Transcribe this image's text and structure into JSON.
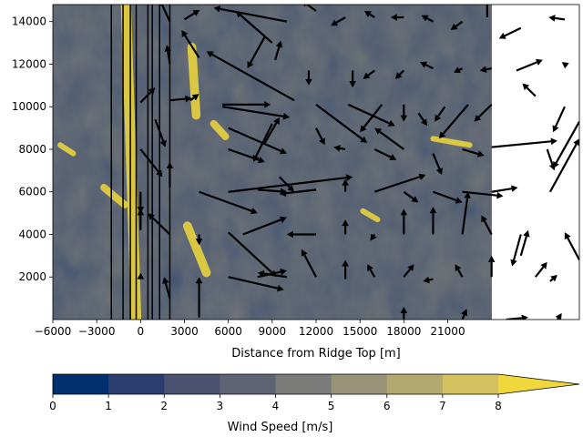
{
  "chart_data": {
    "type": "heatmap",
    "title": "",
    "xlabel": "Distance from Ridge Top [m]",
    "ylabel": "",
    "xlim": [
      -6000,
      30000
    ],
    "ylim": [
      0,
      14800
    ],
    "data_extent_x": [
      -6000,
      24000
    ],
    "x_ticks": [
      -6000,
      -3000,
      0,
      3000,
      6000,
      9000,
      12000,
      15000,
      18000,
      21000
    ],
    "x_tick_labels": [
      "−6000",
      "−3000",
      "0",
      "3000",
      "6000",
      "9000",
      "12000",
      "15000",
      "18000",
      "21000"
    ],
    "y_ticks": [
      2000,
      4000,
      6000,
      8000,
      10000,
      12000,
      14000
    ],
    "y_tick_labels": [
      "2000",
      "4000",
      "6000",
      "8000",
      "10000",
      "12000",
      "14000"
    ],
    "vertical_lines_x": [
      -2000,
      -1200,
      -700,
      -300,
      500,
      800,
      1300,
      2000
    ],
    "colorbar": {
      "label": "Wind Speed [m/s]",
      "levels": [
        0,
        1,
        2,
        3,
        4,
        5,
        6,
        7,
        8,
        9
      ],
      "tick_labels": [
        "0",
        "1",
        "2",
        "3",
        "4",
        "5",
        "6",
        "7",
        "8"
      ],
      "extend": "max",
      "colors": [
        "#00306f",
        "#2b3d6e",
        "#4a5270",
        "#5e6474",
        "#7a7a79",
        "#989279",
        "#b3a870",
        "#d2c15e",
        "#f0d83c",
        "#fde737"
      ],
      "cmap": "cividis"
    },
    "arrow_color": "#000000",
    "vectors": [
      {
        "x": 10000,
        "y": 14000,
        "u": -5000,
        "v": 650
      },
      {
        "x": 2000,
        "y": 14000,
        "u": -700,
        "v": 1050
      },
      {
        "x": 3000,
        "y": 14100,
        "u": 1050,
        "v": 450
      },
      {
        "x": 12000,
        "y": 14500,
        "u": -1000,
        "v": 500
      },
      {
        "x": 14000,
        "y": 14200,
        "u": -1000,
        "v": -400
      },
      {
        "x": 16000,
        "y": 14200,
        "u": -700,
        "v": 300
      },
      {
        "x": 18000,
        "y": 14200,
        "u": -900,
        "v": 0
      },
      {
        "x": 20000,
        "y": 14000,
        "u": -800,
        "v": 300
      },
      {
        "x": 22000,
        "y": 14000,
        "u": -800,
        "v": -400
      },
      {
        "x": 23700,
        "y": 14200,
        "u": 0,
        "v": 1000
      },
      {
        "x": 26000,
        "y": 13700,
        "u": -1500,
        "v": -500
      },
      {
        "x": 29000,
        "y": 14100,
        "u": -1100,
        "v": 100
      },
      {
        "x": 9000,
        "y": 13000,
        "u": -2500,
        "v": 1500
      },
      {
        "x": 8500,
        "y": 13300,
        "u": -1200,
        "v": -1500
      },
      {
        "x": 2000,
        "y": 12000,
        "u": -200,
        "v": 900
      },
      {
        "x": 4000,
        "y": 12300,
        "u": -1200,
        "v": 1300
      },
      {
        "x": 9200,
        "y": 12200,
        "u": 400,
        "v": 900
      },
      {
        "x": 11500,
        "y": 11700,
        "u": 0,
        "v": -700
      },
      {
        "x": 14500,
        "y": 11700,
        "u": 0,
        "v": -800
      },
      {
        "x": 16000,
        "y": 11700,
        "u": -800,
        "v": -400
      },
      {
        "x": 18000,
        "y": 11700,
        "u": -600,
        "v": -400
      },
      {
        "x": 20000,
        "y": 11800,
        "u": -900,
        "v": 300
      },
      {
        "x": 22000,
        "y": 11800,
        "u": -600,
        "v": -200
      },
      {
        "x": 24000,
        "y": 11800,
        "u": -800,
        "v": -100
      },
      {
        "x": 25700,
        "y": 11700,
        "u": 1800,
        "v": 500
      },
      {
        "x": 29000,
        "y": 12000,
        "u": -200,
        "v": 100
      },
      {
        "x": 10500,
        "y": 10300,
        "u": -6000,
        "v": 2300
      },
      {
        "x": 0,
        "y": 10200,
        "u": 1000,
        "v": 700
      },
      {
        "x": 2000,
        "y": 10300,
        "u": 1500,
        "v": 100
      },
      {
        "x": 3400,
        "y": 10300,
        "u": 600,
        "v": 300
      },
      {
        "x": 5600,
        "y": 10100,
        "u": 3300,
        "v": 0
      },
      {
        "x": 5600,
        "y": 10000,
        "u": 4600,
        "v": -500
      },
      {
        "x": 12000,
        "y": 10100,
        "u": 3500,
        "v": -1800
      },
      {
        "x": 14200,
        "y": 10100,
        "u": 3200,
        "v": -1000
      },
      {
        "x": 16500,
        "y": 10100,
        "u": -1500,
        "v": -1300
      },
      {
        "x": 18000,
        "y": 10100,
        "u": 0,
        "v": -800
      },
      {
        "x": 19000,
        "y": 9700,
        "u": 600,
        "v": -600
      },
      {
        "x": 20800,
        "y": 10000,
        "u": -700,
        "v": -700
      },
      {
        "x": 22400,
        "y": 10100,
        "u": -2000,
        "v": -1600
      },
      {
        "x": 24000,
        "y": 10100,
        "u": -1200,
        "v": -800
      },
      {
        "x": 27000,
        "y": 10500,
        "u": -900,
        "v": 600
      },
      {
        "x": 29000,
        "y": 10000,
        "u": -800,
        "v": -1200
      },
      {
        "x": 9000,
        "y": 9200,
        "u": -1300,
        "v": -1800
      },
      {
        "x": 8500,
        "y": 8300,
        "u": 1000,
        "v": 1200
      },
      {
        "x": 6000,
        "y": 9000,
        "u": 4000,
        "v": -1200
      },
      {
        "x": 1000,
        "y": 9400,
        "u": 700,
        "v": -1300
      },
      {
        "x": 12000,
        "y": 9000,
        "u": 600,
        "v": -800
      },
      {
        "x": 14000,
        "y": 8000,
        "u": -800,
        "v": 100
      },
      {
        "x": 16000,
        "y": 8000,
        "u": 1500,
        "v": -500
      },
      {
        "x": 18000,
        "y": 8000,
        "u": -2000,
        "v": 1000
      },
      {
        "x": 20000,
        "y": 7800,
        "u": 600,
        "v": -1000
      },
      {
        "x": 22000,
        "y": 8000,
        "u": 1500,
        "v": -300
      },
      {
        "x": 24000,
        "y": 8100,
        "u": 4500,
        "v": 300
      },
      {
        "x": 30000,
        "y": 9300,
        "u": -1800,
        "v": -2200
      },
      {
        "x": 27800,
        "y": 8000,
        "u": 500,
        "v": -1000
      },
      {
        "x": 6000,
        "y": 8000,
        "u": 2500,
        "v": -600
      },
      {
        "x": 0,
        "y": 8000,
        "u": 1500,
        "v": -1300
      },
      {
        "x": 2000,
        "y": 6200,
        "u": 0,
        "v": 1200
      },
      {
        "x": 0,
        "y": 6000,
        "u": 0,
        "v": -1000
      },
      {
        "x": 4000,
        "y": 6000,
        "u": 4000,
        "v": -1000
      },
      {
        "x": 6000,
        "y": 6000,
        "u": 8500,
        "v": 700
      },
      {
        "x": 8000,
        "y": 6100,
        "u": 2000,
        "v": -100
      },
      {
        "x": 9500,
        "y": 6700,
        "u": 1000,
        "v": -700
      },
      {
        "x": 12000,
        "y": 6100,
        "u": -2500,
        "v": -200
      },
      {
        "x": 14000,
        "y": 6000,
        "u": 0,
        "v": 600
      },
      {
        "x": 16000,
        "y": 6000,
        "u": 3500,
        "v": 800
      },
      {
        "x": 18000,
        "y": 6000,
        "u": 1000,
        "v": -500
      },
      {
        "x": 20000,
        "y": 6000,
        "u": 2000,
        "v": -500
      },
      {
        "x": 22000,
        "y": 6000,
        "u": 2800,
        "v": -200
      },
      {
        "x": 24000,
        "y": 6000,
        "u": 1800,
        "v": 200
      },
      {
        "x": 28000,
        "y": 6000,
        "u": 2000,
        "v": 2500
      },
      {
        "x": 0,
        "y": 4200,
        "u": 0,
        "v": 1000
      },
      {
        "x": 2000,
        "y": 4000,
        "u": -1500,
        "v": 1000
      },
      {
        "x": 4000,
        "y": 4000,
        "u": 0,
        "v": -500
      },
      {
        "x": 7000,
        "y": 4000,
        "u": 3000,
        "v": 800
      },
      {
        "x": 12000,
        "y": 4000,
        "u": -2000,
        "v": 0
      },
      {
        "x": 14000,
        "y": 4000,
        "u": 0,
        "v": 700
      },
      {
        "x": 16000,
        "y": 4000,
        "u": -300,
        "v": -300
      },
      {
        "x": 18000,
        "y": 4000,
        "u": 0,
        "v": 1200
      },
      {
        "x": 20000,
        "y": 4000,
        "u": 0,
        "v": 1300
      },
      {
        "x": 22000,
        "y": 4000,
        "u": 400,
        "v": 2000
      },
      {
        "x": 24000,
        "y": 4000,
        "u": -700,
        "v": 900
      },
      {
        "x": 26000,
        "y": 4000,
        "u": -600,
        "v": -1500
      },
      {
        "x": 30000,
        "y": 2800,
        "u": -1000,
        "v": 1300
      },
      {
        "x": 0,
        "y": 2000,
        "u": 0,
        "v": 200
      },
      {
        "x": 2000,
        "y": 1000,
        "u": -400,
        "v": 1000
      },
      {
        "x": 4000,
        "y": 100,
        "u": 0,
        "v": 1900
      },
      {
        "x": 6000,
        "y": 2000,
        "u": 3800,
        "v": -600
      },
      {
        "x": 6000,
        "y": 4100,
        "u": 3300,
        "v": -2100
      },
      {
        "x": 8000,
        "y": 2000,
        "u": 2000,
        "v": 300
      },
      {
        "x": 10000,
        "y": 2000,
        "u": -2000,
        "v": 200
      },
      {
        "x": 12000,
        "y": 2000,
        "u": -1000,
        "v": 1300
      },
      {
        "x": 14000,
        "y": 1900,
        "u": 0,
        "v": 900
      },
      {
        "x": 16000,
        "y": 2000,
        "u": -500,
        "v": 600
      },
      {
        "x": 18000,
        "y": 2000,
        "u": 700,
        "v": 600
      },
      {
        "x": 20000,
        "y": 1900,
        "u": -700,
        "v": -100
      },
      {
        "x": 22000,
        "y": 2000,
        "u": -500,
        "v": 600
      },
      {
        "x": 24000,
        "y": 2000,
        "u": 0,
        "v": 1000
      },
      {
        "x": 26000,
        "y": 3000,
        "u": 500,
        "v": 1200
      },
      {
        "x": 27000,
        "y": 2000,
        "u": 800,
        "v": 700
      },
      {
        "x": 28000,
        "y": 1800,
        "u": 500,
        "v": 300
      },
      {
        "x": 18000,
        "y": 0,
        "u": 0,
        "v": 600
      },
      {
        "x": 22000,
        "y": 0,
        "u": 300,
        "v": 500
      },
      {
        "x": 25000,
        "y": 0,
        "u": 1500,
        "v": 100
      },
      {
        "x": 28500,
        "y": 0,
        "u": 300,
        "v": 300
      }
    ]
  }
}
